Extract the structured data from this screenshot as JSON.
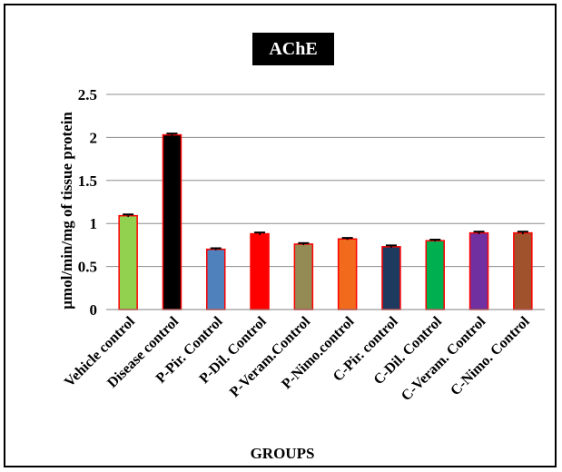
{
  "chart_data": {
    "type": "bar",
    "title": "AChE",
    "xlabel": "GROUPS",
    "ylabel": "µmol/min/mg of tissue protein",
    "categories": [
      "Vehicle control",
      "Disease control",
      "P-Pir. Control",
      "P-Dil. Control",
      "P-Veram.Control",
      "P-Nimo.control",
      "C-Pir. control",
      "C-Dil. Control",
      "C-Veram. Control",
      "C-Nimo. Control"
    ],
    "values": [
      1.09,
      2.03,
      0.7,
      0.88,
      0.76,
      0.82,
      0.73,
      0.8,
      0.89,
      0.89
    ],
    "errors": [
      0.015,
      0.015,
      0.012,
      0.015,
      0.012,
      0.012,
      0.015,
      0.012,
      0.015,
      0.015
    ],
    "colors": [
      "#92d050",
      "#000000",
      "#4f81bd",
      "#ff0000",
      "#948a54",
      "#f26b1d",
      "#1f3a5f",
      "#00b050",
      "#7030a0",
      "#a0522d"
    ],
    "bar_edge_color": "#ff0000",
    "ylim": [
      0,
      2.5
    ],
    "yticks": [
      "0",
      "0.5",
      "1",
      "1.5",
      "2",
      "2.5"
    ],
    "ytick_values": [
      0,
      0.5,
      1,
      1.5,
      2,
      2.5
    ],
    "grid": true,
    "legend": "none"
  }
}
